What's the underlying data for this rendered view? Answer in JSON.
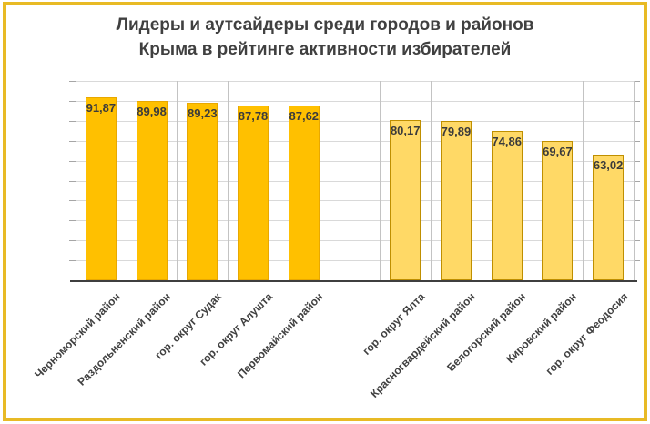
{
  "frame": {
    "border_color": "#E8BA25"
  },
  "title": {
    "line1": "Лидеры и аутсайдеры среди городов и районов",
    "line2": "Крыма в рейтинге активности избирателей",
    "color": "#404040"
  },
  "chart_data": {
    "type": "bar",
    "title": "Лидеры и аутсайдеры среди городов и районов Крыма в рейтинге активности избирателей",
    "ylim": [
      0,
      100
    ],
    "gridline_step": 10,
    "grid": "both",
    "legend": "none",
    "y_axis_tick_labels": "hidden",
    "value_format": "comma-decimal",
    "series": [
      {
        "name": "left-group",
        "fill": "#FFC000",
        "border": "#E8A800",
        "points": [
          {
            "category": "Черноморский район",
            "value": 91.87,
            "label": "91,87"
          },
          {
            "category": "Раздольненский район",
            "value": 89.98,
            "label": "89,98"
          },
          {
            "category": "гор. округ Судак",
            "value": 89.23,
            "label": "89,23"
          },
          {
            "category": "гор. округ Алушта",
            "value": 87.78,
            "label": "87,78"
          },
          {
            "category": "Первомайский район",
            "value": 87.62,
            "label": "87,62"
          }
        ]
      },
      {
        "name": "right-group",
        "fill": "#FFD966",
        "border": "#BF8F00",
        "points": [
          {
            "category": "гор. округ Ялта",
            "value": 80.17,
            "label": "80,17"
          },
          {
            "category": "Красногвардейский район",
            "value": 79.89,
            "label": "79,89"
          },
          {
            "category": "Белогорский район",
            "value": 74.86,
            "label": "74,86"
          },
          {
            "category": "Кировский район",
            "value": 69.67,
            "label": "69,67"
          },
          {
            "category": "гор. округ Феодосия",
            "value": 63.02,
            "label": "63,02"
          }
        ]
      }
    ],
    "colors": {
      "grid_h": "#D9D9D9",
      "grid_v": "#C3C3C3",
      "axis": "#3F3F3F",
      "data_label": "#3B3B3B",
      "category_label": "#404040"
    }
  }
}
